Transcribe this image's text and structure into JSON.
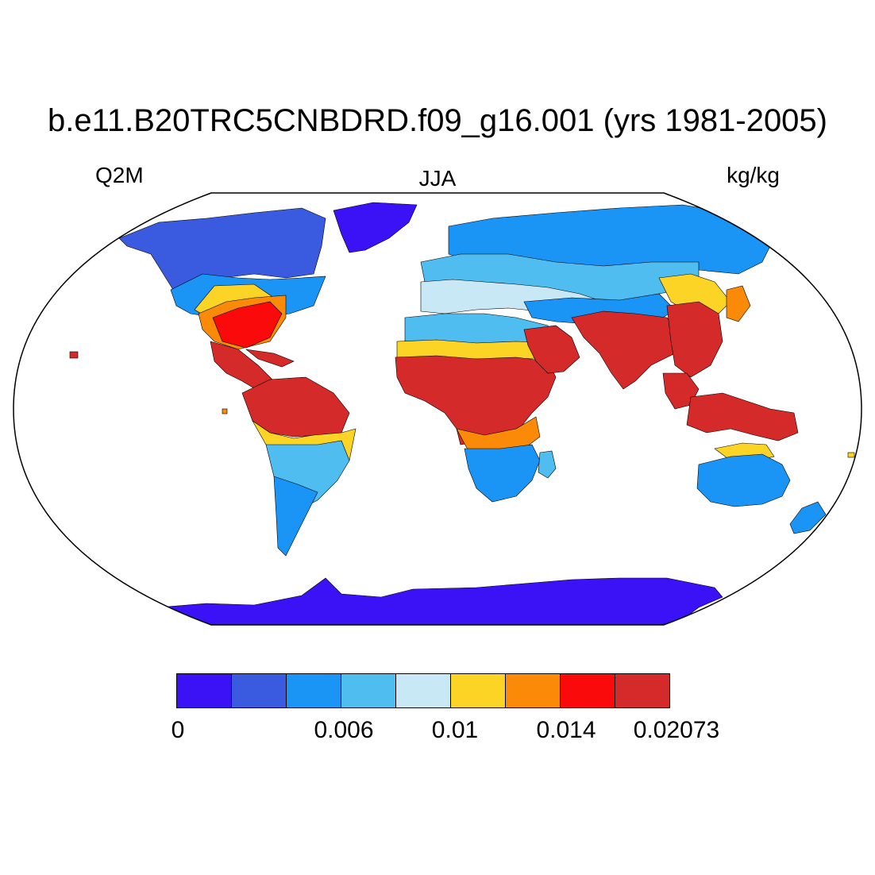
{
  "title": "b.e11.B20TRC5CNBDRD.f09_g16.001 (yrs 1981-2005)",
  "variable": "Q2M",
  "season": "JJA",
  "units": "kg/kg",
  "colorbar": {
    "colors": [
      "#3b12f5",
      "#3a5ae0",
      "#1a94f5",
      "#4fbdf0",
      "#c8e8f5",
      "#fbd425",
      "#fb8a08",
      "#fa0a0a",
      "#d42a2a"
    ],
    "tick_labels": [
      "0",
      "0.006",
      "0.01",
      "0.014",
      "0.02073"
    ]
  }
}
